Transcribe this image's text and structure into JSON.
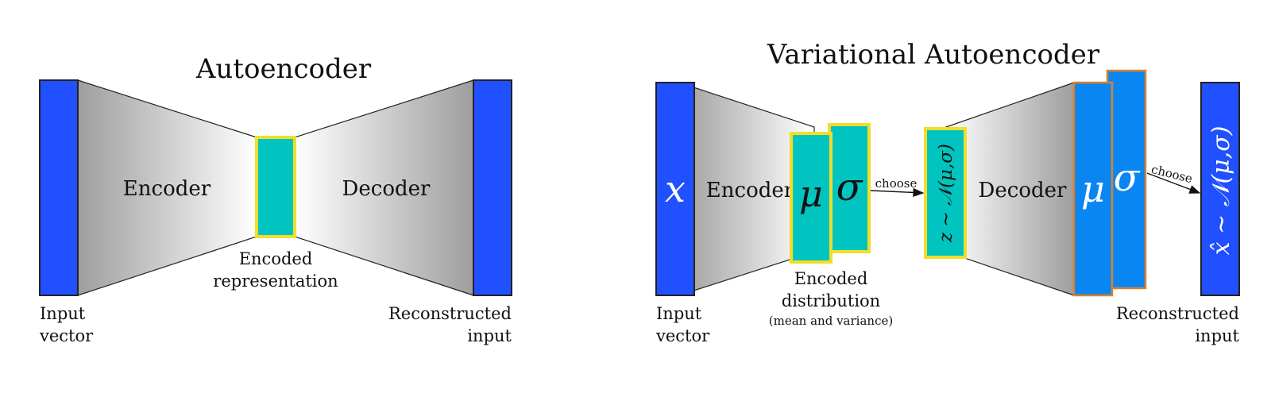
{
  "colors": {
    "input_blue": "#2050ff",
    "dist_blue": "#0a86f2",
    "teal": "#00c4c0",
    "yellow_border": "#f2dd2a",
    "orange_border": "#d9822b",
    "funnel_dark": "#9e9e9e",
    "funnel_light": "#ffffff"
  },
  "autoencoder": {
    "title": "Autoencoder",
    "encoder": "Encoder",
    "decoder": "Decoder",
    "input_label": [
      "Input",
      "vector"
    ],
    "code_label": [
      "Encoded",
      "representation"
    ],
    "output_label": [
      "Reconstructed",
      "input"
    ]
  },
  "vae": {
    "title": "Variational Autoencoder",
    "input_symbol": "x",
    "encoder": "Encoder",
    "decoder": "Decoder",
    "mu_symbol": "μ",
    "sigma_symbol": "σ",
    "sample_label": "z ∼ 𝒩(μ,σ)",
    "output_label_symbol": "x̂ ∼ 𝒩(μ,σ)",
    "choose_1": "choose",
    "choose_2": "choose",
    "input_label": [
      "Input",
      "vector"
    ],
    "dist_label": [
      "Encoded",
      "distribution"
    ],
    "dist_sublabel": "(mean and variance)",
    "output_label": [
      "Reconstructed",
      "input"
    ]
  }
}
